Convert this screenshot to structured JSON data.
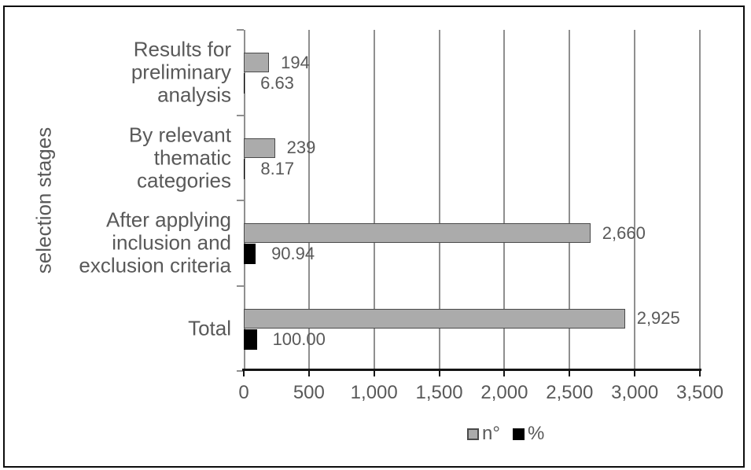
{
  "chart_data": {
    "type": "bar",
    "orientation": "horizontal",
    "title": "",
    "categories": [
      "Results for preliminary analysis",
      "By relevant thematic categories",
      "After applying inclusion and exclusion criteria",
      "Total"
    ],
    "categories_display": [
      "Results for\npreliminary\nanalysis",
      "By relevant\nthematic\ncategories",
      "After applying\ninclusion and\nexclusion criteria",
      "Total"
    ],
    "series": [
      {
        "name": "n°",
        "color": "#ababab",
        "border_color": "#4a4a4a",
        "values": [
          194,
          239,
          2660,
          2925
        ],
        "labels": [
          "194",
          "239",
          "2,660",
          "2,925"
        ]
      },
      {
        "name": "%",
        "color": "#000000",
        "values": [
          6.63,
          8.17,
          90.94,
          100.0
        ],
        "labels": [
          "6.63",
          "8.17",
          "90.94",
          "100.00"
        ]
      }
    ],
    "xlabel": "",
    "ylabel": "selection stages",
    "xlim": [
      0,
      3500
    ],
    "xticks": [
      0,
      500,
      1000,
      1500,
      2000,
      2500,
      3000,
      3500
    ],
    "xtick_labels": [
      "0",
      "500",
      "1,000",
      "1,500",
      "2,000",
      "2,500",
      "3,000",
      "3,500"
    ],
    "grid": true,
    "legend_position": "bottom-center",
    "text_color": "#595959",
    "gridline_color": "#8f8f8f",
    "axis_color": "#141414",
    "frame_color": "#0d0d0d"
  }
}
